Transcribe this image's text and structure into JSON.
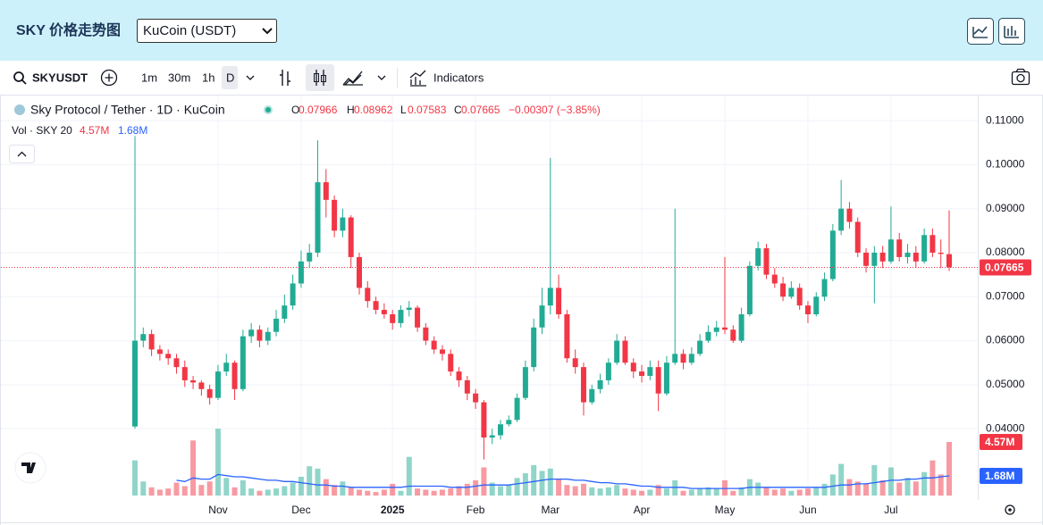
{
  "header": {
    "title": "SKY 价格走势图",
    "exchange": "KuCoin (USDT)"
  },
  "toolbar": {
    "symbol": "SKYUSDT",
    "intervals": [
      "1m",
      "30m",
      "1h",
      "D"
    ],
    "indicators": "Indicators"
  },
  "chart_data": {
    "type": "candlestick",
    "title": "Sky Protocol / Tether · 1D · KuCoin",
    "legend_keys": [
      "O",
      "H",
      "L",
      "C"
    ],
    "change_label": "−0.00307 (−3.85%)",
    "volume_title": "Vol · SKY 20",
    "up_color": "#22ab94",
    "down_color": "#f23645",
    "grid": true,
    "categories": [
      null,
      null,
      null,
      null,
      null,
      null,
      null,
      null,
      null,
      null,
      "Nov",
      null,
      null,
      null,
      null,
      null,
      null,
      null,
      null,
      null,
      "Dec",
      null,
      null,
      null,
      null,
      null,
      null,
      null,
      null,
      null,
      null,
      "2025",
      null,
      null,
      null,
      null,
      null,
      null,
      null,
      null,
      null,
      "Feb",
      null,
      null,
      null,
      null,
      null,
      null,
      null,
      null,
      "Mar",
      null,
      null,
      null,
      null,
      null,
      null,
      null,
      null,
      null,
      null,
      "Apr",
      null,
      null,
      null,
      null,
      null,
      null,
      null,
      null,
      null,
      "May",
      null,
      null,
      null,
      null,
      null,
      null,
      null,
      null,
      null,
      "Jun",
      null,
      null,
      null,
      null,
      null,
      null,
      null,
      null,
      null,
      "Jul",
      null,
      null,
      null,
      null,
      null,
      null,
      null
    ],
    "open": [
      0.0405,
      0.06,
      0.0615,
      0.058,
      0.057,
      0.056,
      0.054,
      0.051,
      0.0505,
      0.049,
      0.047,
      0.053,
      0.055,
      0.049,
      0.061,
      0.0625,
      0.06,
      0.062,
      0.065,
      0.068,
      0.073,
      0.078,
      0.08,
      0.096,
      0.092,
      0.085,
      0.088,
      0.079,
      0.072,
      0.069,
      0.067,
      0.066,
      0.064,
      0.067,
      0.0675,
      0.063,
      0.06,
      0.058,
      0.057,
      0.053,
      0.051,
      0.048,
      0.046,
      0.038,
      0.0385,
      0.041,
      0.042,
      0.047,
      0.054,
      0.063,
      0.068,
      0.072,
      0.066,
      0.056,
      0.054,
      0.046,
      0.049,
      0.051,
      0.055,
      0.06,
      0.055,
      0.053,
      0.052,
      0.054,
      0.048,
      0.055,
      0.057,
      0.055,
      0.057,
      0.06,
      0.062,
      0.063,
      0.0625,
      0.06,
      0.066,
      0.077,
      0.081,
      0.075,
      0.073,
      0.07,
      0.072,
      0.068,
      0.066,
      0.07,
      0.074,
      0.085,
      0.09,
      0.087,
      0.08,
      0.077,
      0.08,
      0.078,
      0.083,
      0.079,
      0.08,
      0.078,
      0.084,
      0.08,
      0.07966
    ],
    "high": [
      0.1065,
      0.063,
      0.0625,
      0.059,
      0.058,
      0.057,
      0.0555,
      0.052,
      0.051,
      0.05,
      0.0545,
      0.057,
      0.0555,
      0.0625,
      0.064,
      0.0635,
      0.063,
      0.067,
      0.0705,
      0.075,
      0.0805,
      0.082,
      0.1055,
      0.099,
      0.093,
      0.09,
      0.0885,
      0.08,
      0.0735,
      0.07,
      0.0685,
      0.067,
      0.068,
      0.069,
      0.068,
      0.064,
      0.061,
      0.059,
      0.058,
      0.054,
      0.052,
      0.049,
      0.0465,
      0.04,
      0.042,
      0.043,
      0.048,
      0.0555,
      0.065,
      0.072,
      0.1015,
      0.075,
      0.067,
      0.058,
      0.055,
      0.05,
      0.0525,
      0.056,
      0.0615,
      0.061,
      0.056,
      0.0545,
      0.0555,
      0.0555,
      0.0565,
      0.09,
      0.058,
      0.0585,
      0.0615,
      0.0635,
      0.0645,
      0.079,
      0.0635,
      0.0675,
      0.078,
      0.0825,
      0.082,
      0.0765,
      0.0745,
      0.0735,
      0.073,
      0.069,
      0.071,
      0.0755,
      0.0865,
      0.0965,
      0.0915,
      0.088,
      0.081,
      0.0815,
      0.0815,
      0.0905,
      0.0845,
      0.082,
      0.0815,
      0.0855,
      0.0855,
      0.083,
      0.08962
    ],
    "low": [
      0.04,
      0.0585,
      0.0565,
      0.0555,
      0.0545,
      0.0525,
      0.0495,
      0.049,
      0.0475,
      0.0455,
      0.0465,
      0.052,
      0.0465,
      0.0485,
      0.0595,
      0.0585,
      0.059,
      0.061,
      0.064,
      0.067,
      0.072,
      0.0765,
      0.079,
      0.088,
      0.0835,
      0.0835,
      0.0765,
      0.0705,
      0.0675,
      0.066,
      0.065,
      0.0625,
      0.063,
      0.0655,
      0.062,
      0.059,
      0.057,
      0.0555,
      0.052,
      0.0495,
      0.0465,
      0.0445,
      0.033,
      0.0365,
      0.0375,
      0.0405,
      0.0415,
      0.0465,
      0.053,
      0.0615,
      0.066,
      0.065,
      0.055,
      0.0525,
      0.043,
      0.0455,
      0.048,
      0.05,
      0.0545,
      0.0545,
      0.0515,
      0.0505,
      0.051,
      0.044,
      0.0475,
      0.0545,
      0.0535,
      0.0545,
      0.0565,
      0.0595,
      0.061,
      0.0615,
      0.0595,
      0.0595,
      0.0655,
      0.076,
      0.074,
      0.072,
      0.069,
      0.0695,
      0.067,
      0.064,
      0.0655,
      0.069,
      0.0735,
      0.084,
      0.0855,
      0.079,
      0.0755,
      0.0685,
      0.0765,
      0.0775,
      0.078,
      0.0775,
      0.0765,
      0.0775,
      0.079,
      0.0765,
      0.07583
    ],
    "close": [
      0.06,
      0.0615,
      0.058,
      0.057,
      0.056,
      0.054,
      0.051,
      0.0505,
      0.049,
      0.047,
      0.053,
      0.055,
      0.049,
      0.061,
      0.0625,
      0.06,
      0.062,
      0.065,
      0.068,
      0.073,
      0.078,
      0.08,
      0.096,
      0.092,
      0.085,
      0.088,
      0.079,
      0.072,
      0.069,
      0.067,
      0.066,
      0.064,
      0.067,
      0.0675,
      0.063,
      0.06,
      0.058,
      0.057,
      0.053,
      0.051,
      0.048,
      0.046,
      0.038,
      0.0385,
      0.041,
      0.042,
      0.047,
      0.054,
      0.063,
      0.068,
      0.072,
      0.066,
      0.056,
      0.054,
      0.046,
      0.049,
      0.051,
      0.055,
      0.06,
      0.055,
      0.053,
      0.052,
      0.054,
      0.048,
      0.055,
      0.057,
      0.055,
      0.057,
      0.06,
      0.062,
      0.063,
      0.0625,
      0.06,
      0.066,
      0.077,
      0.081,
      0.075,
      0.073,
      0.07,
      0.072,
      0.068,
      0.066,
      0.07,
      0.074,
      0.085,
      0.09,
      0.087,
      0.08,
      0.077,
      0.08,
      0.078,
      0.083,
      0.079,
      0.08,
      0.078,
      0.084,
      0.08,
      0.07972,
      0.07665
    ],
    "ylim": [
      0.0238,
      0.1155
    ],
    "yticks": [
      {
        "value": 0.04,
        "label": "0.04000"
      },
      {
        "value": 0.05,
        "label": "0.05000"
      },
      {
        "value": 0.06,
        "label": "0.06000"
      },
      {
        "value": 0.07,
        "label": "0.07000"
      },
      {
        "value": 0.08,
        "label": "0.08000"
      },
      {
        "value": 0.09,
        "label": "0.09000"
      },
      {
        "value": 0.1,
        "label": "0.10000"
      },
      {
        "value": 0.11,
        "label": "0.11000"
      }
    ],
    "volume": {
      "ylim": [
        0,
        8000000
      ],
      "values": [
        3000000,
        1200000,
        700000,
        500000,
        600000,
        1100000,
        800000,
        4700000,
        900000,
        1200000,
        5700000,
        1500000,
        700000,
        1300000,
        600000,
        400000,
        500000,
        600000,
        800000,
        1100000,
        1600000,
        2500000,
        2300000,
        1400000,
        900000,
        1200000,
        700000,
        500000,
        400000,
        300000,
        500000,
        1000000,
        400000,
        3300000,
        600000,
        500000,
        400000,
        500000,
        600000,
        800000,
        1000000,
        1300000,
        2400000,
        1100000,
        800000,
        900000,
        1500000,
        1900000,
        2600000,
        2100000,
        2300000,
        1400000,
        900000,
        800000,
        1000000,
        700000,
        600000,
        700000,
        900000,
        600000,
        500000,
        400000,
        500000,
        900000,
        600000,
        1300000,
        400000,
        500000,
        600000,
        700000,
        600000,
        1300000,
        400000,
        700000,
        1400000,
        1100000,
        700000,
        500000,
        600000,
        400000,
        500000,
        600000,
        700000,
        1000000,
        1800000,
        2700000,
        1400000,
        1200000,
        1000000,
        2600000,
        1300000,
        2400000,
        1100000,
        1500000,
        1200000,
        2000000,
        3000000,
        1800000,
        4570000
      ],
      "value_labels": [
        null,
        null,
        null,
        null,
        null,
        null,
        null,
        null,
        null,
        null,
        null,
        null,
        null,
        null,
        null,
        null,
        null,
        null,
        null,
        null,
        null,
        null,
        null,
        null,
        null,
        null,
        null,
        null,
        null,
        null,
        null,
        null,
        null,
        null,
        null,
        null,
        null,
        null,
        null,
        null,
        null,
        null,
        null,
        null,
        null,
        null,
        null,
        null,
        null,
        null,
        null,
        null,
        null,
        null,
        null,
        null,
        null,
        null,
        null,
        null,
        null,
        null,
        null,
        null,
        null,
        null,
        null,
        null,
        null,
        null,
        null,
        null,
        null,
        null,
        null,
        null,
        null,
        null,
        null,
        null,
        null,
        null,
        null,
        null,
        null,
        null,
        null,
        null,
        null,
        null,
        null,
        null,
        null,
        null,
        null,
        null,
        null,
        null,
        "4.57M"
      ],
      "ma_color": "#2962ff",
      "ma": [
        null,
        null,
        null,
        null,
        null,
        1300000,
        1200000,
        1500000,
        1400000,
        1400000,
        1800000,
        1700000,
        1600000,
        1600000,
        1500000,
        1400000,
        1300000,
        1300000,
        1200000,
        1200000,
        1100000,
        1000000,
        900000,
        900000,
        800000,
        800000,
        700000,
        700000,
        700000,
        700000,
        700000,
        700000,
        700000,
        800000,
        800000,
        800000,
        800000,
        800000,
        700000,
        700000,
        700000,
        800000,
        900000,
        900000,
        900000,
        900000,
        1000000,
        1100000,
        1200000,
        1300000,
        1400000,
        1400000,
        1400000,
        1300000,
        1300000,
        1200000,
        1100000,
        1100000,
        1000000,
        1000000,
        900000,
        800000,
        800000,
        700000,
        700000,
        700000,
        700000,
        600000,
        600000,
        600000,
        600000,
        600000,
        600000,
        600000,
        700000,
        700000,
        700000,
        700000,
        700000,
        700000,
        700000,
        700000,
        700000,
        700000,
        800000,
        900000,
        900000,
        1000000,
        1000000,
        1100000,
        1200000,
        1300000,
        1300000,
        1400000,
        1400000,
        1500000,
        1500000,
        1600000,
        1680000
      ],
      "ma_value_labels": [
        null,
        null,
        null,
        null,
        null,
        null,
        null,
        null,
        null,
        null,
        null,
        null,
        null,
        null,
        null,
        null,
        null,
        null,
        null,
        null,
        null,
        null,
        null,
        null,
        null,
        null,
        null,
        null,
        null,
        null,
        null,
        null,
        null,
        null,
        null,
        null,
        null,
        null,
        null,
        null,
        null,
        null,
        null,
        null,
        null,
        null,
        null,
        null,
        null,
        null,
        null,
        null,
        null,
        null,
        null,
        null,
        null,
        null,
        null,
        null,
        null,
        null,
        null,
        null,
        null,
        null,
        null,
        null,
        null,
        null,
        null,
        null,
        null,
        null,
        null,
        null,
        null,
        null,
        null,
        null,
        null,
        null,
        null,
        null,
        null,
        null,
        null,
        null,
        null,
        null,
        null,
        null,
        null,
        null,
        null,
        null,
        null,
        null,
        "1.68M"
      ]
    }
  }
}
